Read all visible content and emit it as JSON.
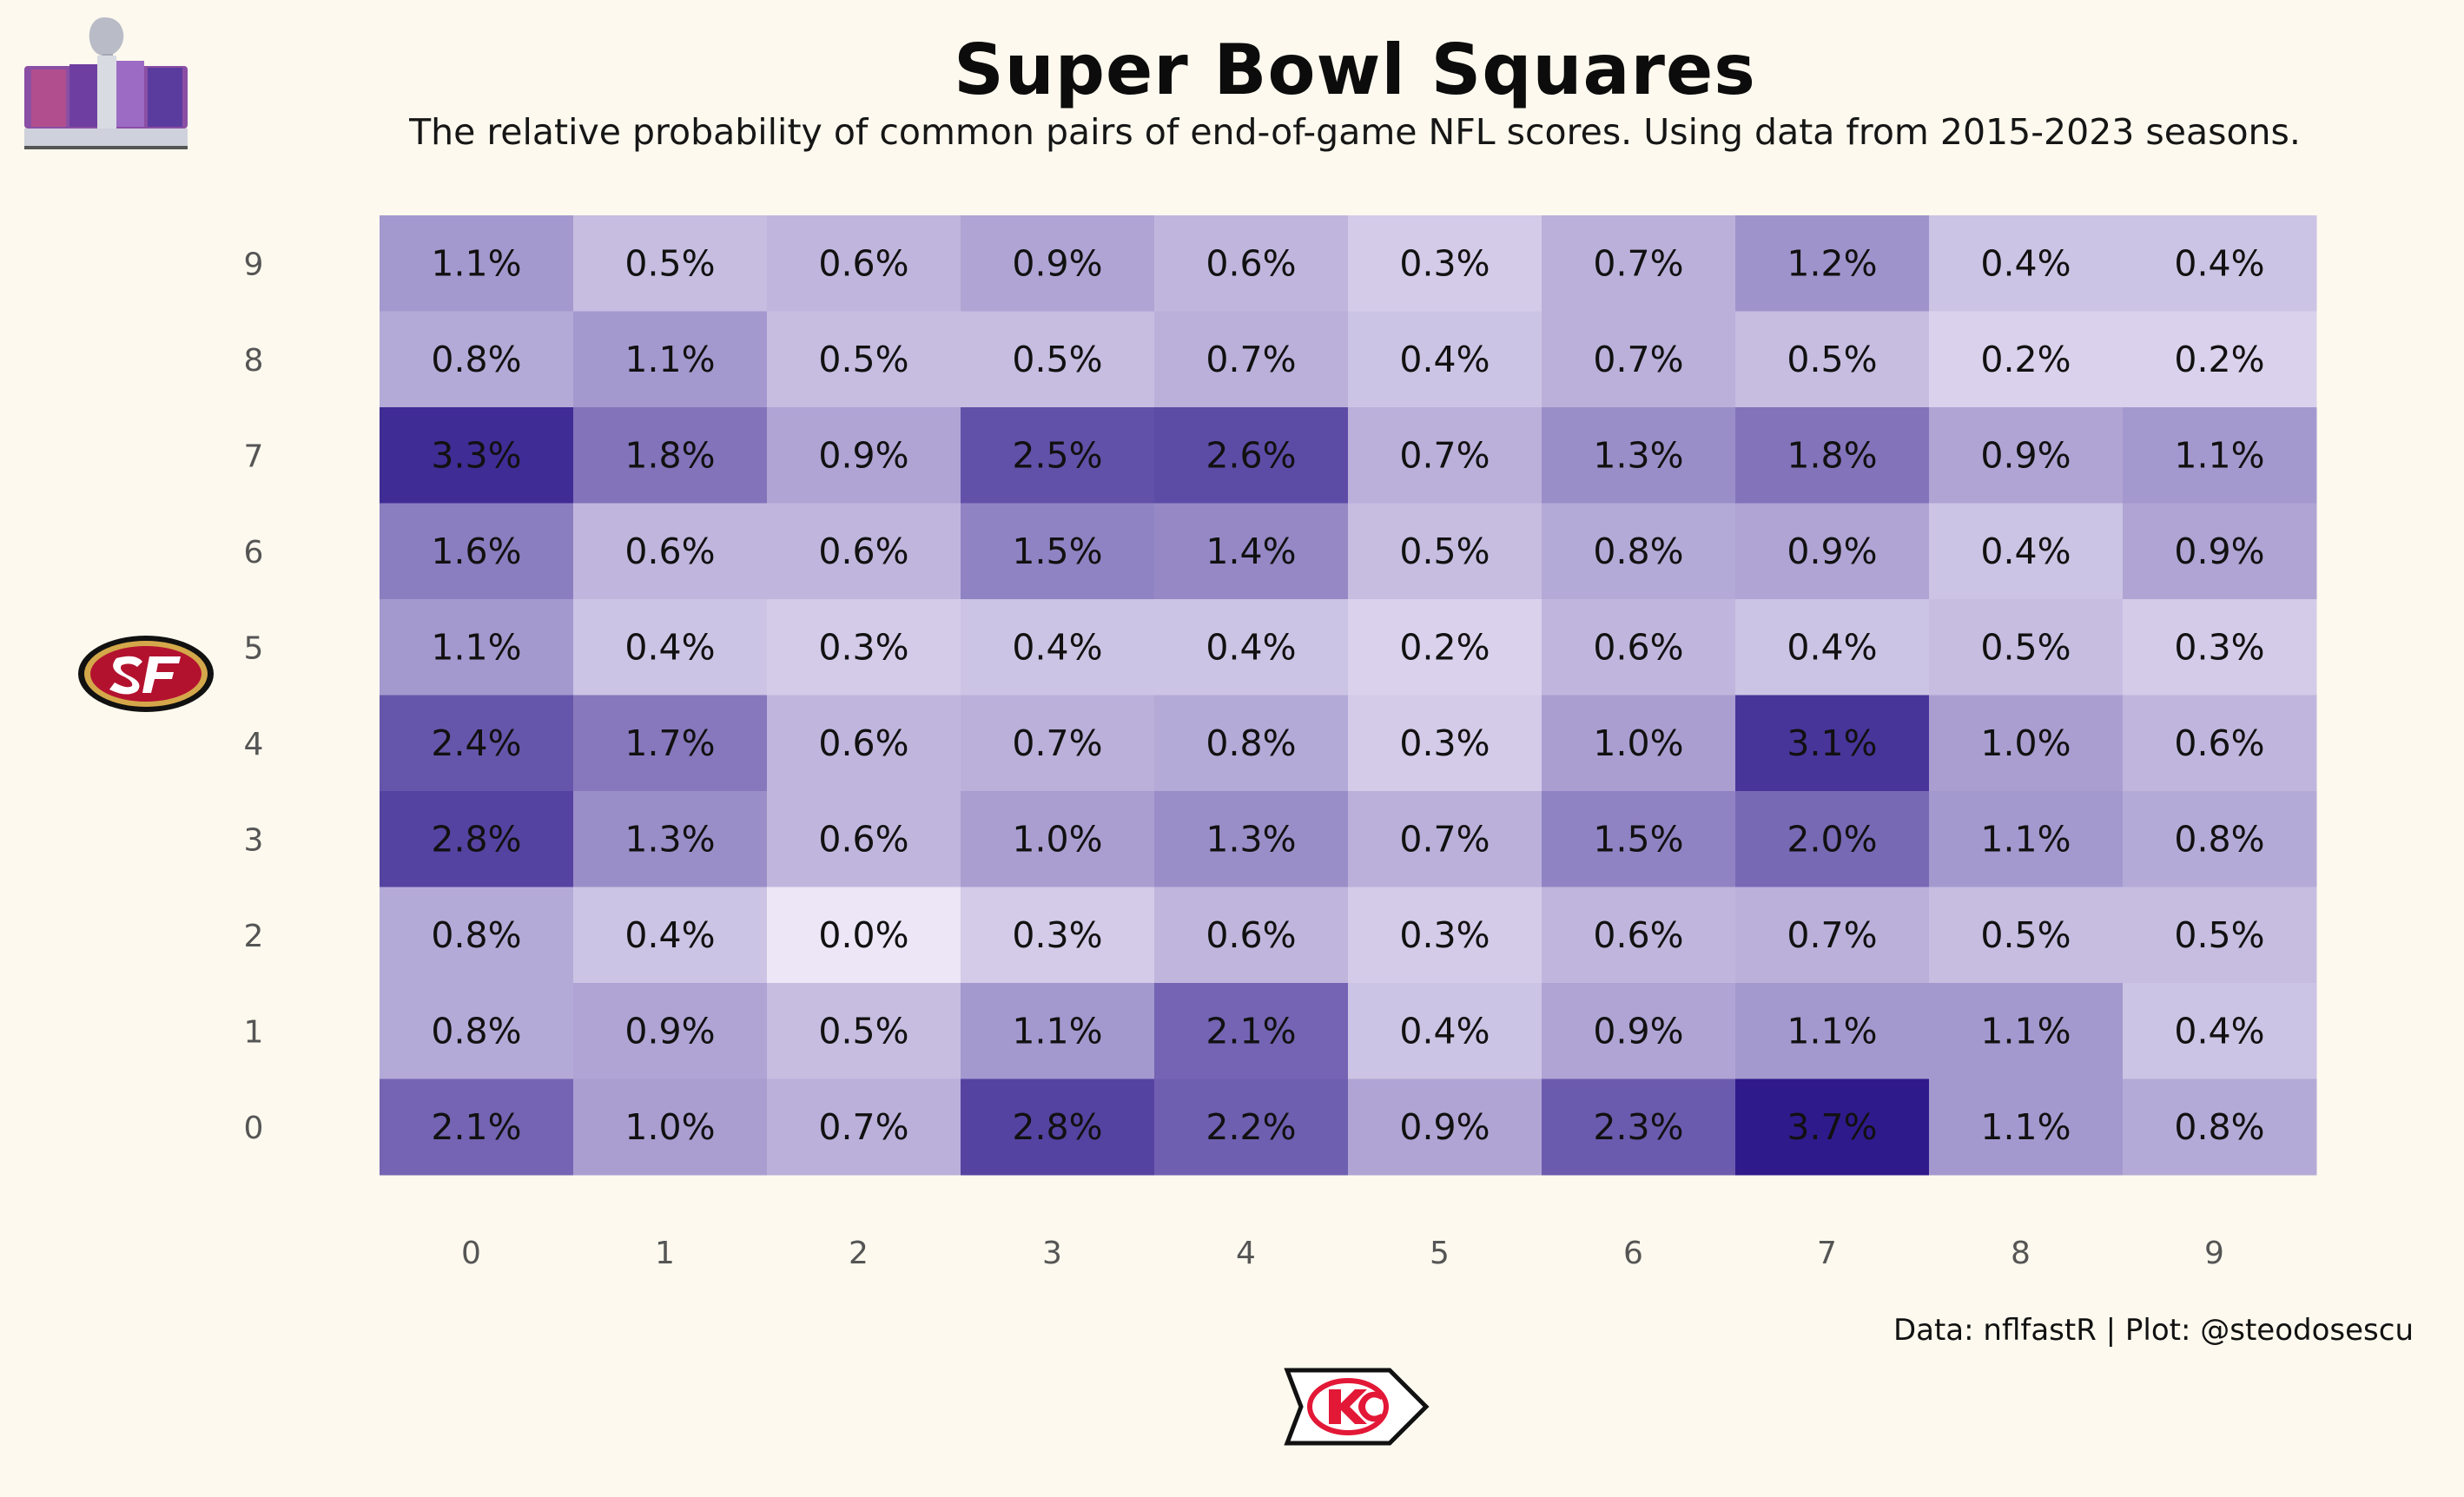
{
  "title": "Super Bowl Squares",
  "subtitle": "The relative probability of common pairs of end-of-game NFL scores. Using data from 2015-2023 seasons.",
  "caption": "Data: nflfastR | Plot: @steodosescu",
  "logos": {
    "top_left": "super-bowl-lviii-logo",
    "left": "san-francisco-49ers-logo",
    "bottom": "kansas-city-chiefs-logo"
  },
  "colors": {
    "background": "#fdf9ee",
    "low": "#ece6f6",
    "high": "#2f1a8c"
  },
  "chart_data": {
    "type": "heatmap",
    "x": [
      0,
      1,
      2,
      3,
      4,
      5,
      6,
      7,
      8,
      9
    ],
    "y": [
      0,
      1,
      2,
      3,
      4,
      5,
      6,
      7,
      8,
      9
    ],
    "x_tick_labels": [
      "0",
      "1",
      "2",
      "3",
      "4",
      "5",
      "6",
      "7",
      "8",
      "9"
    ],
    "y_tick_labels": [
      "0",
      "1",
      "2",
      "3",
      "4",
      "5",
      "6",
      "7",
      "8",
      "9"
    ],
    "unit": "%",
    "values_by_row": {
      "0": [
        2.1,
        1.0,
        0.7,
        2.8,
        2.2,
        0.9,
        2.3,
        3.7,
        1.1,
        0.8
      ],
      "1": [
        0.8,
        0.9,
        0.5,
        1.1,
        2.1,
        0.4,
        0.9,
        1.1,
        1.1,
        0.4
      ],
      "2": [
        0.8,
        0.4,
        0.0,
        0.3,
        0.6,
        0.3,
        0.6,
        0.7,
        0.5,
        0.5
      ],
      "3": [
        2.8,
        1.3,
        0.6,
        1.0,
        1.3,
        0.7,
        1.5,
        2.0,
        1.1,
        0.8
      ],
      "4": [
        2.4,
        1.7,
        0.6,
        0.7,
        0.8,
        0.3,
        1.0,
        3.1,
        1.0,
        0.6
      ],
      "5": [
        1.1,
        0.4,
        0.3,
        0.4,
        0.4,
        0.2,
        0.6,
        0.4,
        0.5,
        0.3
      ],
      "6": [
        1.6,
        0.6,
        0.6,
        1.5,
        1.4,
        0.5,
        0.8,
        0.9,
        0.4,
        0.9
      ],
      "7": [
        3.3,
        1.8,
        0.9,
        2.5,
        2.6,
        0.7,
        1.3,
        1.8,
        0.9,
        1.1
      ],
      "8": [
        0.8,
        1.1,
        0.5,
        0.5,
        0.7,
        0.4,
        0.7,
        0.5,
        0.2,
        0.2
      ],
      "9": [
        1.1,
        0.5,
        0.6,
        0.9,
        0.6,
        0.3,
        0.7,
        1.2,
        0.4,
        0.4
      ]
    },
    "value_range": [
      0,
      3.7
    ],
    "grid": false,
    "legend": "none"
  }
}
